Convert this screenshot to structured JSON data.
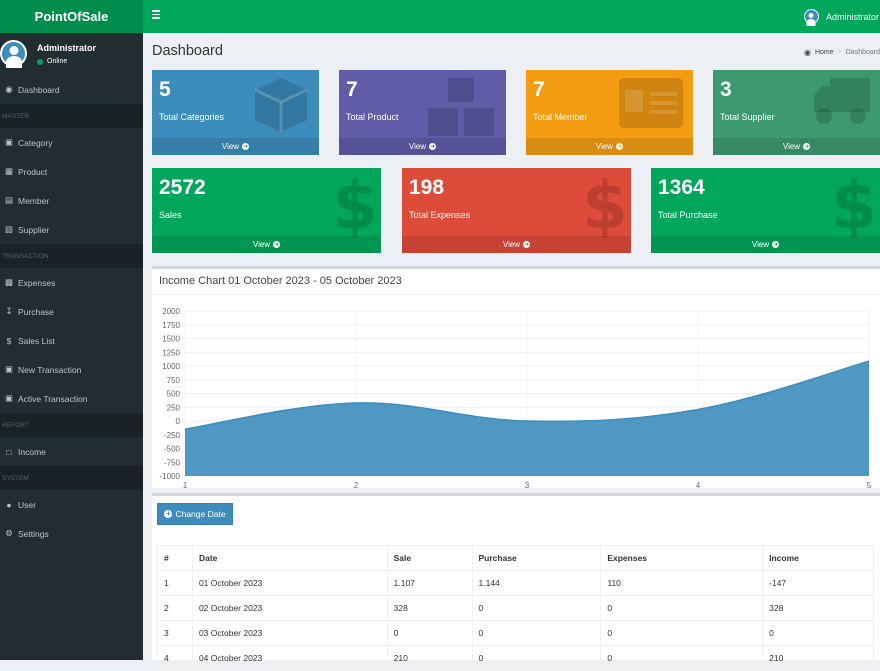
{
  "header": {
    "logo": "PointOfSale",
    "user_name": "Administrator"
  },
  "sidebar": {
    "user": {
      "name": "Administrator",
      "status": "Online"
    },
    "sections": [
      {
        "header": null,
        "items": [
          {
            "label": "Dashboard",
            "icon": "dashboard-icon"
          }
        ]
      },
      {
        "header": "MASTER",
        "items": [
          {
            "label": "Category",
            "icon": "cube-icon"
          },
          {
            "label": "Product",
            "icon": "cubes-icon"
          },
          {
            "label": "Member",
            "icon": "id-card-icon"
          },
          {
            "label": "Supplier",
            "icon": "truck-icon"
          }
        ]
      },
      {
        "header": "TRANSACTION",
        "items": [
          {
            "label": "Expenses",
            "icon": "money-icon"
          },
          {
            "label": "Purchase",
            "icon": "download-icon"
          },
          {
            "label": "Sales List",
            "icon": "dollar-icon"
          },
          {
            "label": "New Transaction",
            "icon": "cart-icon"
          },
          {
            "label": "Active Transaction",
            "icon": "cart-icon"
          }
        ]
      },
      {
        "header": "REPORT",
        "items": [
          {
            "label": "Income",
            "icon": "file-pdf-icon"
          }
        ]
      },
      {
        "header": "SYSTEM",
        "items": [
          {
            "label": "User",
            "icon": "users-icon"
          },
          {
            "label": "Settings",
            "icon": "cogs-icon"
          }
        ]
      }
    ]
  },
  "page": {
    "title": "Dashboard",
    "breadcrumb": {
      "home": "Home",
      "active": "Dashboard"
    }
  },
  "boxes": [
    {
      "value": "5",
      "label": "Total Categories",
      "footer": "View",
      "color": "#3c8dbc",
      "icon": "cube-icon"
    },
    {
      "value": "7",
      "label": "Total Product",
      "footer": "View",
      "color": "#605ca8",
      "icon": "cubes-icon"
    },
    {
      "value": "7",
      "label": "Total Member",
      "footer": "View",
      "color": "#f39c12",
      "icon": "id-card-icon"
    },
    {
      "value": "3",
      "label": "Total Supplier",
      "footer": "View",
      "color": "#3d9970",
      "icon": "truck-icon"
    },
    {
      "value": "2572",
      "label": "Sales",
      "footer": "View",
      "color": "#00a65a",
      "icon": "dollar-icon"
    },
    {
      "value": "198",
      "label": "Total Expenses",
      "footer": "View",
      "color": "#dd4b39",
      "icon": "dollar-icon"
    },
    {
      "value": "1364",
      "label": "Total Purchase",
      "footer": "View",
      "color": "#00a65a",
      "icon": "dollar-icon"
    }
  ],
  "chart_data": {
    "type": "area",
    "title": "Income Chart 01 October 2023 - 05 October 2023",
    "x": [
      1,
      2,
      3,
      4,
      5
    ],
    "series": [
      {
        "name": "Income",
        "values": [
          -147,
          328,
          0,
          210,
          1087
        ],
        "color": "#3c8dbc"
      }
    ],
    "ylim": [
      -1000,
      2000
    ],
    "yticks": [
      2000,
      1750,
      1500,
      1250,
      1000,
      750,
      500,
      250,
      0,
      -250,
      -500,
      -750,
      -1000
    ],
    "xticks": [
      "1",
      "2",
      "3",
      "4",
      "5"
    ],
    "grid": true
  },
  "table": {
    "button": "Change Date",
    "headers": [
      "#",
      "Date",
      "Sale",
      "Purchase",
      "Expenses",
      "Income"
    ],
    "rows": [
      [
        "1",
        "01 October 2023",
        "1.107",
        "1.144",
        "110",
        "-147"
      ],
      [
        "2",
        "02 October 2023",
        "328",
        "0",
        "0",
        "328"
      ],
      [
        "3",
        "03 October 2023",
        "0",
        "0",
        "0",
        "0"
      ],
      [
        "4",
        "04 October 2023",
        "210",
        "0",
        "0",
        "210"
      ]
    ]
  }
}
